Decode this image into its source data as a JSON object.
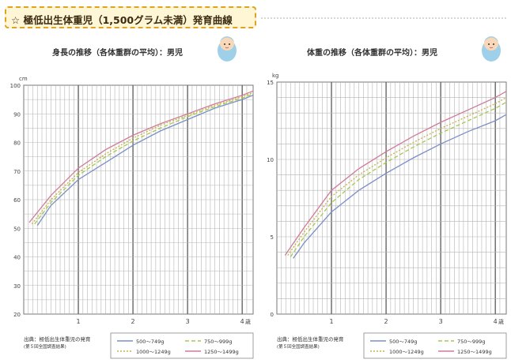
{
  "header": {
    "star": "☆",
    "title": "極低出生体重児（1,500グラム未満）発育曲線"
  },
  "icons": {
    "baby": "baby-icon"
  },
  "colors": {
    "banner_border": "#e0a21f",
    "banner_bg": "#fff6d6",
    "grid": "#9a9a9a",
    "s1": "#7a8fc8",
    "s2": "#a6c84a",
    "s3": "#c8b04a",
    "s4": "#d07a9a"
  },
  "chart_data": [
    {
      "type": "line",
      "title": "身長の推移（各体重群の平均）：男児",
      "yunit": "cm",
      "xunit": "歳",
      "xlim": [
        0,
        4.2
      ],
      "ylim": [
        20,
        100
      ],
      "grid": true,
      "xticks": [
        1,
        2,
        3,
        4
      ],
      "yticks": [
        20,
        30,
        40,
        50,
        60,
        70,
        80,
        90,
        100
      ],
      "legend_note": [
        "出典：極低出生体重児の発育",
        "(第５回全国調査結果)"
      ],
      "legend_position": "bottom",
      "series": [
        {
          "name": "500〜749g",
          "color": "#7a8fc8",
          "dash": "none",
          "x": [
            0.25,
            0.5,
            1,
            1.5,
            2,
            2.5,
            3,
            3.5,
            4,
            4.2
          ],
          "y": [
            51,
            58,
            67,
            73,
            79,
            84,
            88,
            92,
            95,
            96.5
          ]
        },
        {
          "name": "750〜999g",
          "color": "#a6c84a",
          "dash": "5 3",
          "x": [
            0.2,
            0.5,
            1,
            1.5,
            2,
            2.5,
            3,
            3.5,
            4,
            4.2
          ],
          "y": [
            51.5,
            59,
            68.5,
            75,
            80.5,
            85,
            89,
            92.5,
            95.5,
            97
          ]
        },
        {
          "name": "1000〜1249g",
          "color": "#c8b04a",
          "dash": "2 2",
          "x": [
            0.15,
            0.5,
            1,
            1.5,
            2,
            2.5,
            3,
            3.5,
            4,
            4.2
          ],
          "y": [
            51.5,
            60,
            69.5,
            76,
            81.5,
            86,
            89.5,
            93,
            96,
            97.5
          ]
        },
        {
          "name": "1250〜1499g",
          "color": "#d07a9a",
          "dash": "none",
          "x": [
            0.1,
            0.5,
            1,
            1.5,
            2,
            2.5,
            3,
            3.5,
            4,
            4.2
          ],
          "y": [
            52,
            61.5,
            71,
            77.5,
            82.5,
            86.5,
            90,
            93.5,
            96.5,
            98
          ]
        }
      ]
    },
    {
      "type": "line",
      "title": "体重の推移（各体重群の平均）：男児",
      "yunit": "kg",
      "xunit": "歳",
      "xlim": [
        0,
        4.2
      ],
      "ylim": [
        0,
        15
      ],
      "grid": true,
      "xticks": [
        1,
        2,
        3,
        4
      ],
      "yticks": [
        0,
        5,
        10,
        15
      ],
      "legend_note": [
        "出典：極低出生体重児の発育",
        "(第５回全国調査結果)"
      ],
      "legend_position": "bottom",
      "series": [
        {
          "name": "500〜749g",
          "color": "#7a8fc8",
          "dash": "none",
          "x": [
            0.3,
            0.5,
            1,
            1.5,
            2,
            2.5,
            3,
            3.5,
            4,
            4.2
          ],
          "y": [
            3.6,
            4.6,
            6.6,
            8.0,
            9.1,
            10.1,
            11.0,
            11.8,
            12.5,
            12.9
          ]
        },
        {
          "name": "750〜999g",
          "color": "#a6c84a",
          "dash": "5 3",
          "x": [
            0.25,
            0.5,
            1,
            1.5,
            2,
            2.5,
            3,
            3.5,
            4,
            4.2
          ],
          "y": [
            3.7,
            5.0,
            7.2,
            8.7,
            9.8,
            10.8,
            11.7,
            12.5,
            13.3,
            13.7
          ]
        },
        {
          "name": "1000〜1249g",
          "color": "#c8b04a",
          "dash": "2 2",
          "x": [
            0.2,
            0.5,
            1,
            1.5,
            2,
            2.5,
            3,
            3.5,
            4,
            4.2
          ],
          "y": [
            3.8,
            5.3,
            7.6,
            9.0,
            10.1,
            11.1,
            12.0,
            12.8,
            13.6,
            14.0
          ]
        },
        {
          "name": "1250〜1499g",
          "color": "#d07a9a",
          "dash": "none",
          "x": [
            0.15,
            0.5,
            1,
            1.5,
            2,
            2.5,
            3,
            3.5,
            4,
            4.2
          ],
          "y": [
            3.8,
            5.6,
            8.0,
            9.4,
            10.5,
            11.5,
            12.4,
            13.2,
            14.0,
            14.4
          ]
        }
      ]
    }
  ]
}
